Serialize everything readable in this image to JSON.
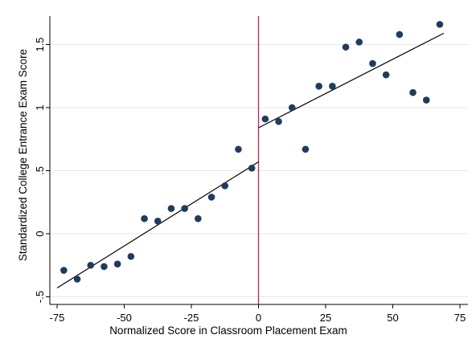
{
  "chart_data": {
    "type": "scatter",
    "title": "",
    "xlabel": "Normalized Score in Classroom Placement Exam",
    "ylabel": "Standardized College Entrance Exam Score",
    "xlim": [
      -77,
      77
    ],
    "ylim": [
      -0.55,
      1.72
    ],
    "x_ticks": [
      -75,
      -50,
      -25,
      0,
      25,
      50,
      75
    ],
    "x_tick_labels": [
      "-75",
      "-50",
      "-25",
      "0",
      "25",
      "50",
      "75"
    ],
    "y_ticks": [
      -0.5,
      0,
      0.5,
      1,
      1.5
    ],
    "y_tick_labels": [
      "-.5",
      "0",
      ".5",
      "1",
      "1.5"
    ],
    "grid": "horizontal",
    "cutoff": 0,
    "points": [
      {
        "x": -72.5,
        "y": -0.29
      },
      {
        "x": -67.5,
        "y": -0.36
      },
      {
        "x": -62.5,
        "y": -0.25
      },
      {
        "x": -57.5,
        "y": -0.26
      },
      {
        "x": -52.5,
        "y": -0.24
      },
      {
        "x": -47.5,
        "y": -0.18
      },
      {
        "x": -42.5,
        "y": 0.12
      },
      {
        "x": -37.5,
        "y": 0.1
      },
      {
        "x": -32.5,
        "y": 0.2
      },
      {
        "x": -27.5,
        "y": 0.2
      },
      {
        "x": -22.5,
        "y": 0.12
      },
      {
        "x": -17.5,
        "y": 0.29
      },
      {
        "x": -12.5,
        "y": 0.38
      },
      {
        "x": -7.5,
        "y": 0.67
      },
      {
        "x": -2.5,
        "y": 0.52
      },
      {
        "x": 2.5,
        "y": 0.91
      },
      {
        "x": 7.5,
        "y": 0.89
      },
      {
        "x": 12.5,
        "y": 1.0
      },
      {
        "x": 17.5,
        "y": 0.67
      },
      {
        "x": 22.5,
        "y": 1.17
      },
      {
        "x": 27.5,
        "y": 1.17
      },
      {
        "x": 32.5,
        "y": 1.48
      },
      {
        "x": 37.5,
        "y": 1.52
      },
      {
        "x": 42.5,
        "y": 1.35
      },
      {
        "x": 47.5,
        "y": 1.26
      },
      {
        "x": 52.5,
        "y": 1.58
      },
      {
        "x": 57.5,
        "y": 1.12
      },
      {
        "x": 62.5,
        "y": 1.06
      },
      {
        "x": 67.5,
        "y": 1.66
      }
    ],
    "fit_lines": [
      {
        "x": [
          -75,
          0
        ],
        "y": [
          -0.43,
          0.57
        ]
      },
      {
        "x": [
          0,
          69
        ],
        "y": [
          0.84,
          1.59
        ]
      }
    ],
    "colors": {
      "marker": "#1f3c5e",
      "fit": "#000000",
      "cutoff": "#b8255f",
      "grid": "#e6e6e6",
      "axis": "#000000"
    }
  }
}
